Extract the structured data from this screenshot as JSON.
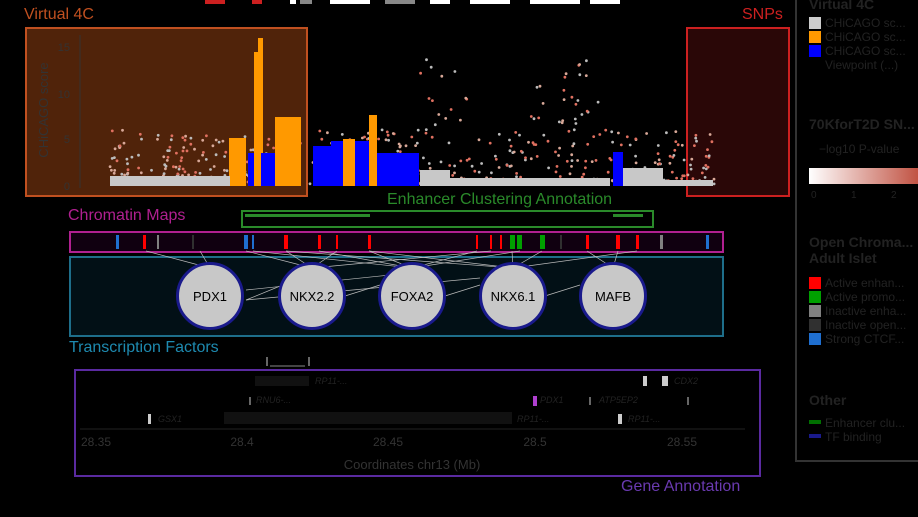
{
  "virtual4c": {
    "label": "Virtual 4C",
    "ylabel": "CHiCAGO score",
    "yticks": [
      "0",
      "5",
      "10",
      "15"
    ]
  },
  "snps": {
    "label": "SNPs"
  },
  "chromatin": {
    "label": "Chromatin Maps"
  },
  "enhancer": {
    "label": "Enhancer Clustering Annotation"
  },
  "tf": {
    "label": "Transcription Factors",
    "factors": [
      "PDX1",
      "NKX2.2",
      "FOXA2",
      "NKX6.1",
      "MAFB"
    ]
  },
  "genes": {
    "label": "Gene Annotation",
    "xlabel": "Coordinates chr13 (Mb)",
    "xticks": [
      "28.35",
      "28.4",
      "28.45",
      "28.5",
      "28.55"
    ],
    "names": [
      "RP11-...",
      "RNU6-...",
      "GSX1",
      "RP11-...",
      "PDX1",
      "ATP5EP2",
      "RP11-...",
      "CDX2",
      "LINC..."
    ]
  },
  "legend": {
    "virtual4c_title": "Virtual 4C",
    "chicago_items": [
      "CHiCAGO sc...",
      "CHiCAGO sc...",
      "CHiCAGO sc...",
      "Viewpoint (...)"
    ],
    "chicago_colors": [
      "#cccccc",
      "#ff9900",
      "#0000ff",
      "#000000"
    ],
    "snp_title": "70KforT2D SN...",
    "snp_subtitle": "−log10 P-value",
    "snp_ticks": [
      "0",
      "1",
      "2"
    ],
    "chrom_title": "Open Chroma... Adult Islet",
    "chrom_items": [
      "Active enhan...",
      "Active promo...",
      "Inactive enha...",
      "Inactive open...",
      "Strong CTCF..."
    ],
    "chrom_colors": [
      "#ff0000",
      "#00a000",
      "#808080",
      "#303030",
      "#1f6fd0"
    ],
    "other_title": "Other",
    "other_items": [
      "Enhancer clu...",
      "TF binding"
    ],
    "other_colors": [
      "#007000",
      "#1a1a8c"
    ]
  }
}
